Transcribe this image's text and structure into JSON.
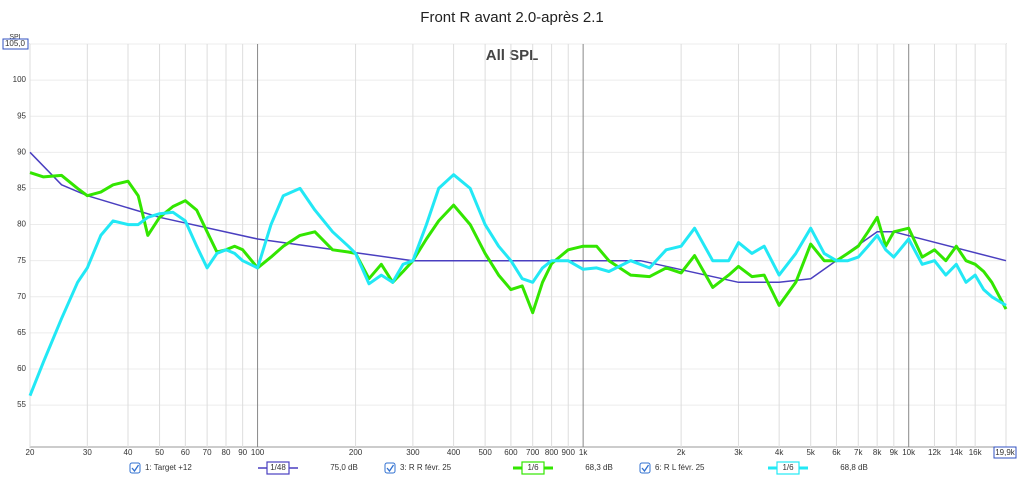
{
  "chart_data": {
    "type": "line",
    "title": "Front R avant 2.0-après 2.1",
    "subtitle": "All SPL",
    "ylabel": "SPL",
    "xscale": "log",
    "grid": true,
    "xlim": [
      20,
      19900
    ],
    "ylim": [
      49.2,
      105
    ],
    "xticks": [
      20,
      30,
      40,
      50,
      60,
      70,
      80,
      90,
      100,
      200,
      300,
      400,
      500,
      600,
      700,
      800,
      900,
      {
        "value": 1000,
        "label": "1k"
      },
      {
        "value": 2000,
        "label": "2k"
      },
      {
        "value": 3000,
        "label": "3k"
      },
      {
        "value": 4000,
        "label": "4k"
      },
      {
        "value": 5000,
        "label": "5k"
      },
      {
        "value": 6000,
        "label": "6k"
      },
      {
        "value": 7000,
        "label": "7k"
      },
      {
        "value": 8000,
        "label": "8k"
      },
      {
        "value": 9000,
        "label": "9k"
      },
      {
        "value": 10000,
        "label": "10k"
      },
      {
        "value": 12000,
        "label": "12k"
      },
      {
        "value": 14000,
        "label": "14k"
      },
      {
        "value": 16000,
        "label": "16k"
      },
      {
        "value": 19900,
        "label": "19,9k"
      }
    ],
    "yticks": [
      55,
      60,
      65,
      70,
      75,
      80,
      85,
      90,
      95,
      100,
      {
        "value": 105,
        "label": "105,0"
      }
    ],
    "x": [
      20,
      22,
      25,
      28,
      30,
      33,
      36,
      40,
      43,
      46,
      50,
      55,
      60,
      65,
      70,
      75,
      80,
      85,
      90,
      100,
      110,
      120,
      135,
      150,
      170,
      190,
      200,
      220,
      240,
      260,
      280,
      300,
      330,
      360,
      400,
      450,
      500,
      550,
      600,
      650,
      700,
      750,
      800,
      900,
      1000,
      1100,
      1200,
      1400,
      1600,
      1800,
      2000,
      2200,
      2500,
      2800,
      3000,
      3300,
      3600,
      4000,
      4500,
      5000,
      5500,
      6000,
      6500,
      7000,
      7500,
      8000,
      8500,
      9000,
      10000,
      11000,
      12000,
      13000,
      14000,
      15000,
      16000,
      17000,
      18000,
      19900
    ],
    "series": [
      {
        "name": "1: Target +12",
        "smoothing": "1/48",
        "level": "75,0 dB",
        "color": "#4a3fc0",
        "width": 1.5,
        "x": [
          20,
          25,
          30,
          50,
          100,
          300,
          1500,
          3000,
          4000,
          5000,
          8000,
          9000,
          19900
        ],
        "values": [
          90,
          85.5,
          84,
          81,
          78,
          75,
          75,
          72,
          72,
          72.5,
          79,
          79,
          75
        ]
      },
      {
        "name": "3: R R févr. 25",
        "smoothing": "1/6",
        "level": "68,3 dB",
        "color": "#33e600",
        "width": 3,
        "values": [
          87.2,
          86.6,
          86.8,
          85,
          84,
          84.5,
          85.5,
          86,
          84,
          78.5,
          81,
          82.5,
          83.3,
          82,
          79,
          76.2,
          76.5,
          77,
          76.5,
          74,
          75.5,
          77,
          78.5,
          79,
          76.5,
          76.2,
          76,
          72.5,
          74.5,
          72,
          73.5,
          75,
          78,
          80.5,
          82.7,
          80,
          76,
          73,
          71,
          71.5,
          67.8,
          72,
          74.6,
          76.5,
          77,
          77,
          75,
          73,
          72.8,
          74,
          73.3,
          75.7,
          71.3,
          73,
          74.2,
          72.8,
          73,
          68.8,
          72,
          77.3,
          75,
          75,
          76,
          77,
          79,
          81,
          77,
          79,
          79.5,
          75.5,
          76.5,
          75,
          77,
          75,
          74.5,
          73.5,
          72,
          68.3
        ]
      },
      {
        "name": "6: R L févr. 25",
        "smoothing": "1/6",
        "level": "68,8 dB",
        "color": "#22e8f5",
        "width": 3,
        "values": [
          56.3,
          61,
          67,
          72,
          74,
          78.5,
          80.5,
          80,
          80,
          81,
          81.5,
          81.7,
          80.5,
          77,
          74,
          76,
          76.5,
          76,
          75,
          74,
          80,
          84,
          85,
          82,
          79,
          77,
          76,
          71.8,
          73,
          72,
          74.5,
          75,
          80,
          85,
          86.9,
          85,
          80,
          77,
          75,
          72.5,
          72,
          74,
          75,
          75,
          73.8,
          74,
          73.5,
          75,
          74,
          76.5,
          77,
          79.5,
          75,
          75,
          77.5,
          76,
          77,
          73,
          76,
          79.5,
          76,
          75,
          75,
          75.5,
          77,
          78.5,
          76.5,
          75.5,
          78,
          74.5,
          75,
          73,
          74.5,
          72,
          73,
          71,
          70,
          68.8
        ]
      }
    ]
  }
}
